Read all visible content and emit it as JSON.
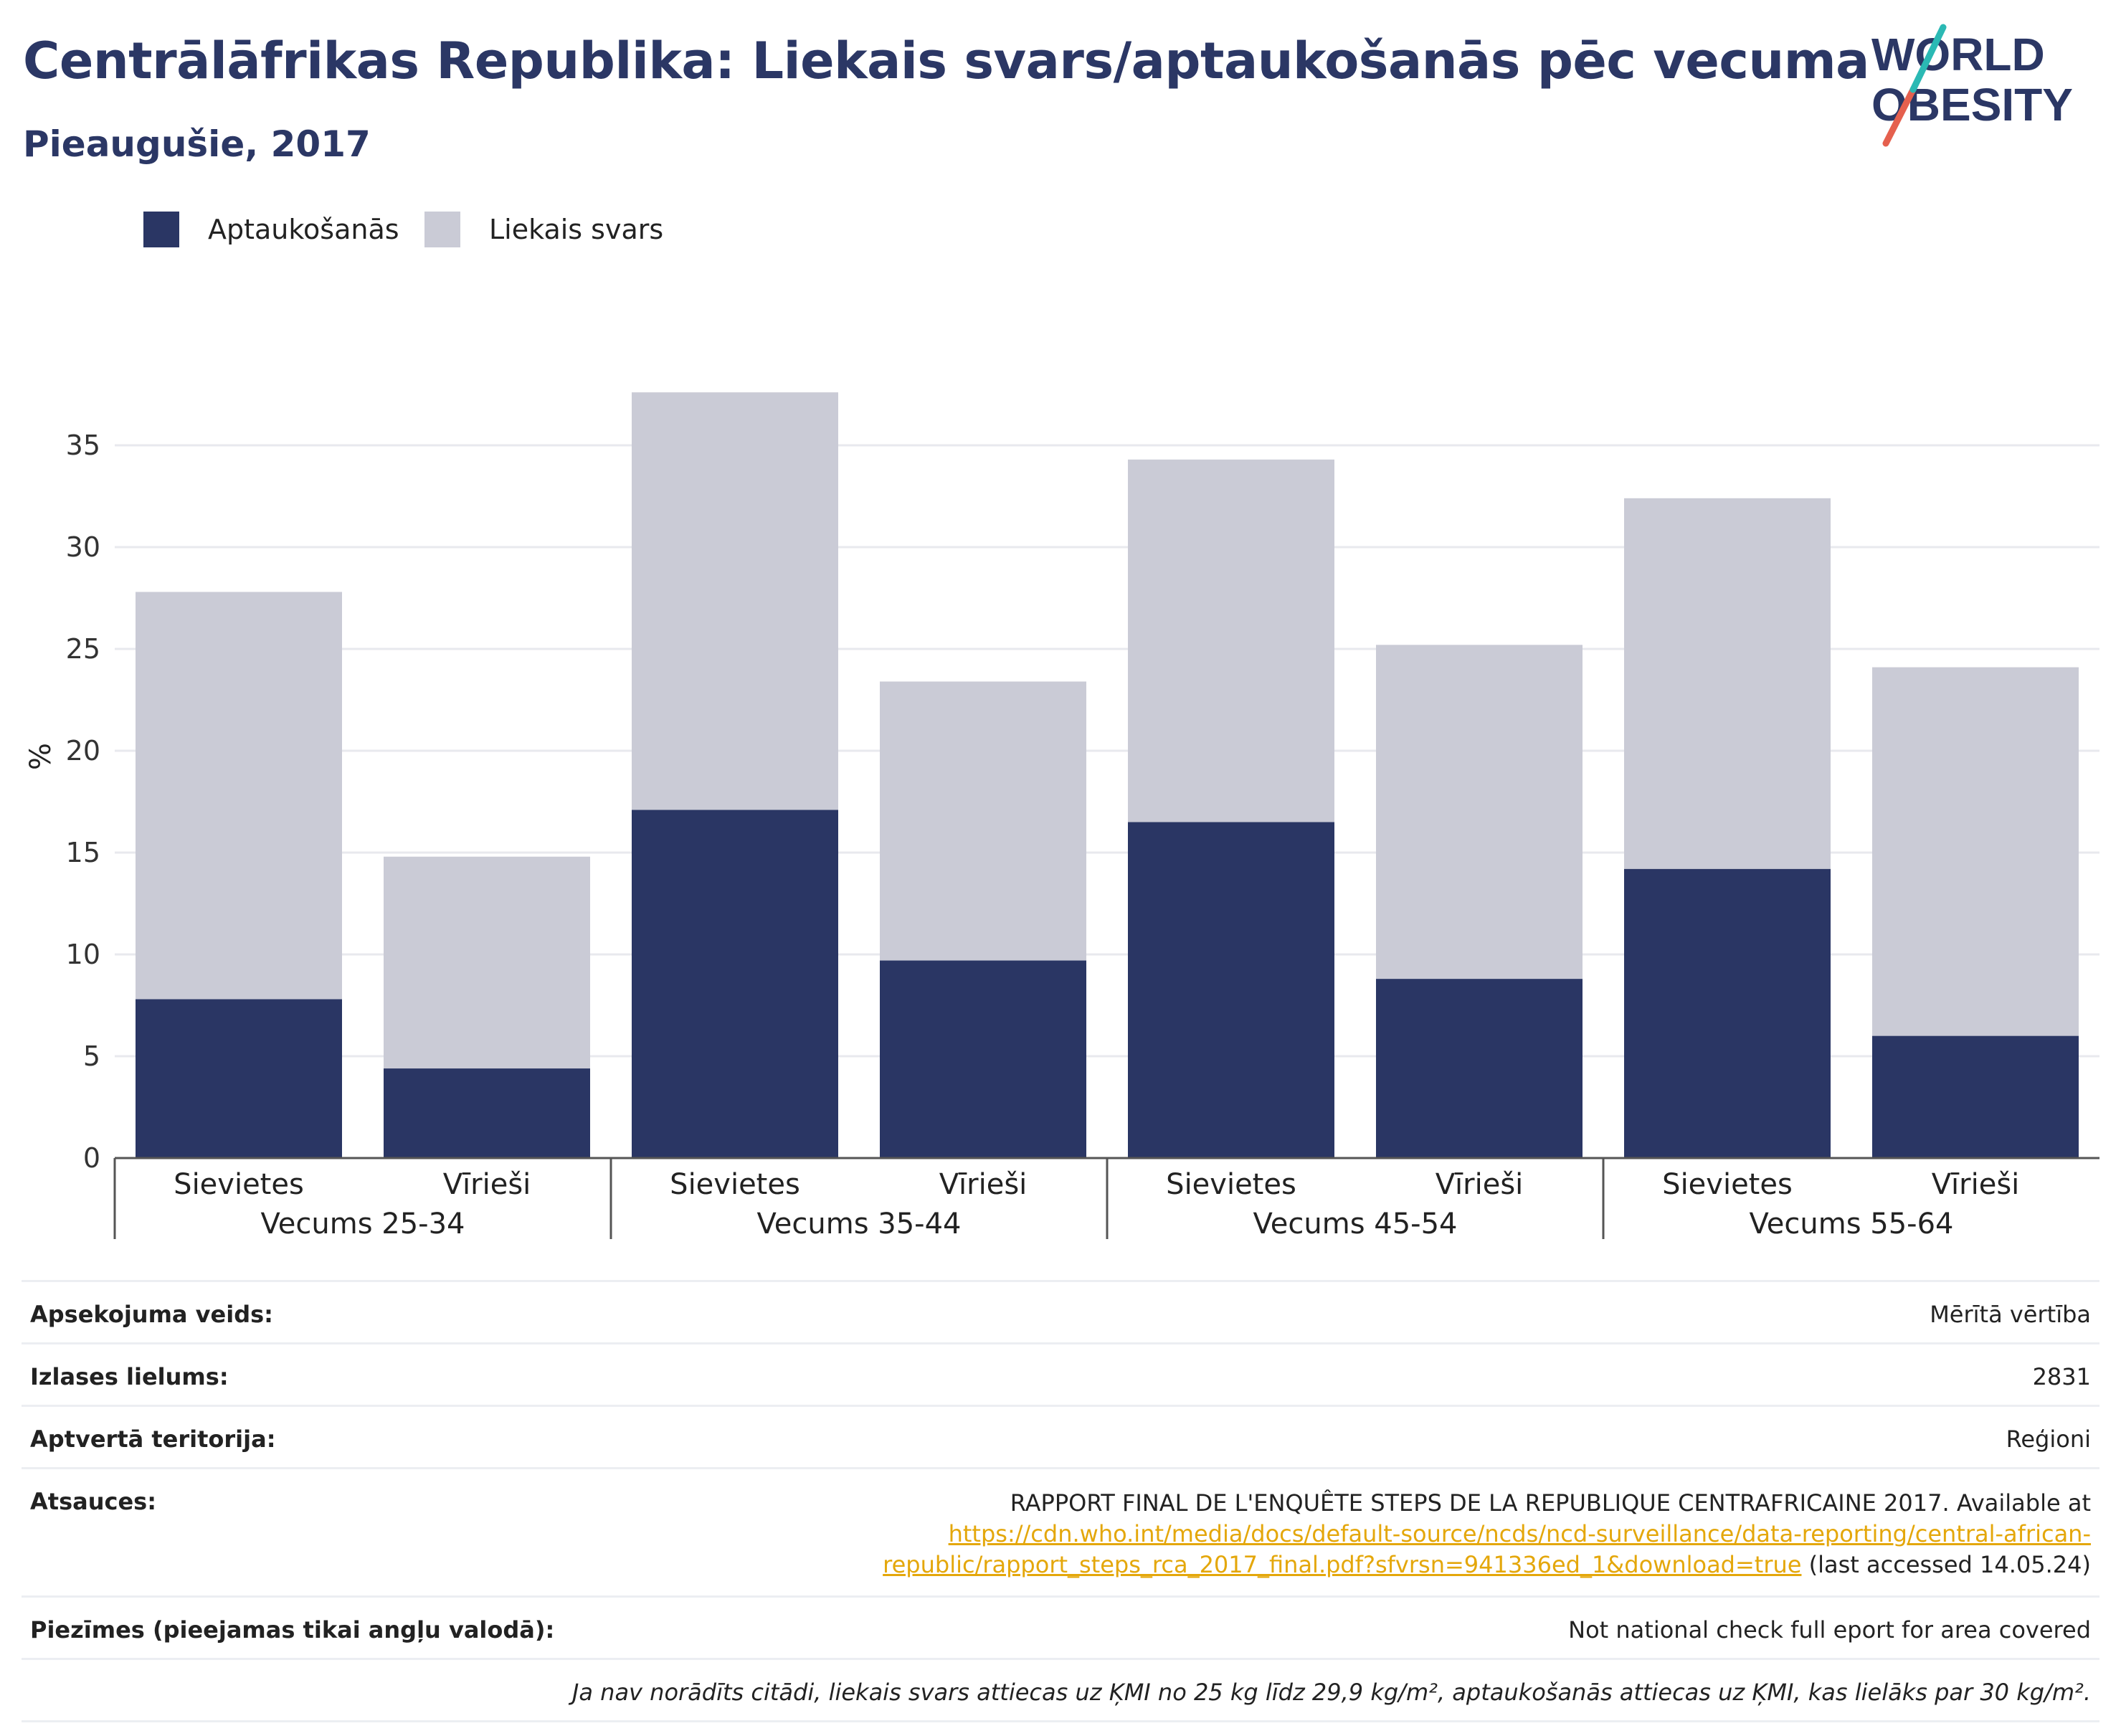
{
  "title": "Centrālāfrikas Republika: Liekais svars/aptaukošanās pēc vecuma",
  "subtitle": "Pieaugušie, 2017",
  "logo": {
    "line1": "WORLD",
    "line2": "OBESITY"
  },
  "colors": {
    "obesity": "#2a3664",
    "overweight": "#cacbd6",
    "title": "#2b3765",
    "link": "#e4a70b",
    "logo_teal": "#2bb9b4",
    "logo_red": "#e5604e"
  },
  "chart_data": {
    "type": "bar",
    "stacked": true,
    "ylabel": "%",
    "ylim": [
      0,
      37.6
    ],
    "yticks": [
      0,
      5,
      10,
      15,
      20,
      25,
      30,
      35
    ],
    "grid": true,
    "legend_position": "top-left",
    "groups": [
      "Vecums 25-34",
      "Vecums 35-44",
      "Vecums 45-54",
      "Vecums 55-64"
    ],
    "categories": [
      "Sievietes",
      "Vīrieši",
      "Sievietes",
      "Vīrieši",
      "Sievietes",
      "Vīrieši",
      "Sievietes",
      "Vīrieši"
    ],
    "series": [
      {
        "name": "Aptaukošanās",
        "values": [
          7.8,
          4.4,
          17.1,
          9.7,
          16.5,
          8.8,
          14.2,
          6.0
        ]
      },
      {
        "name": "Liekais svars",
        "values": [
          20.0,
          10.4,
          20.5,
          13.7,
          17.8,
          16.4,
          18.2,
          18.1
        ]
      }
    ]
  },
  "info": {
    "survey_type": {
      "label": "Apsekojuma veids:",
      "value": "Mērītā vērtība"
    },
    "sample_size": {
      "label": "Izlases lielums:",
      "value": "2831"
    },
    "coverage": {
      "label": "Aptvertā teritorija:",
      "value": "Reģioni"
    },
    "references": {
      "label": "Atsauces:",
      "text": "RAPPORT FINAL DE L'ENQUÊTE STEPS DE LA REPUBLIQUE CENTRAFRICAINE 2017. Available at",
      "link": "https://cdn.who.int/media/docs/default-source/ncds/ncd-surveillance/data-reporting/central-african-republic/rapport_steps_rca_2017_final.pdf?sfvrsn=941336ed_1&download=true",
      "suffix": "(last accessed 14.05.24)"
    },
    "notes": {
      "label": "Piezīmes (pieejamas tikai angļu valodā):",
      "value": "Not national check full eport for area covered"
    },
    "footnote": "Ja nav norādīts citādi, liekais svars attiecas uz ĶMI no 25 kg līdz 29,9 kg/m², aptaukošanās attiecas uz ĶMI, kas lielāks par 30 kg/m²."
  }
}
